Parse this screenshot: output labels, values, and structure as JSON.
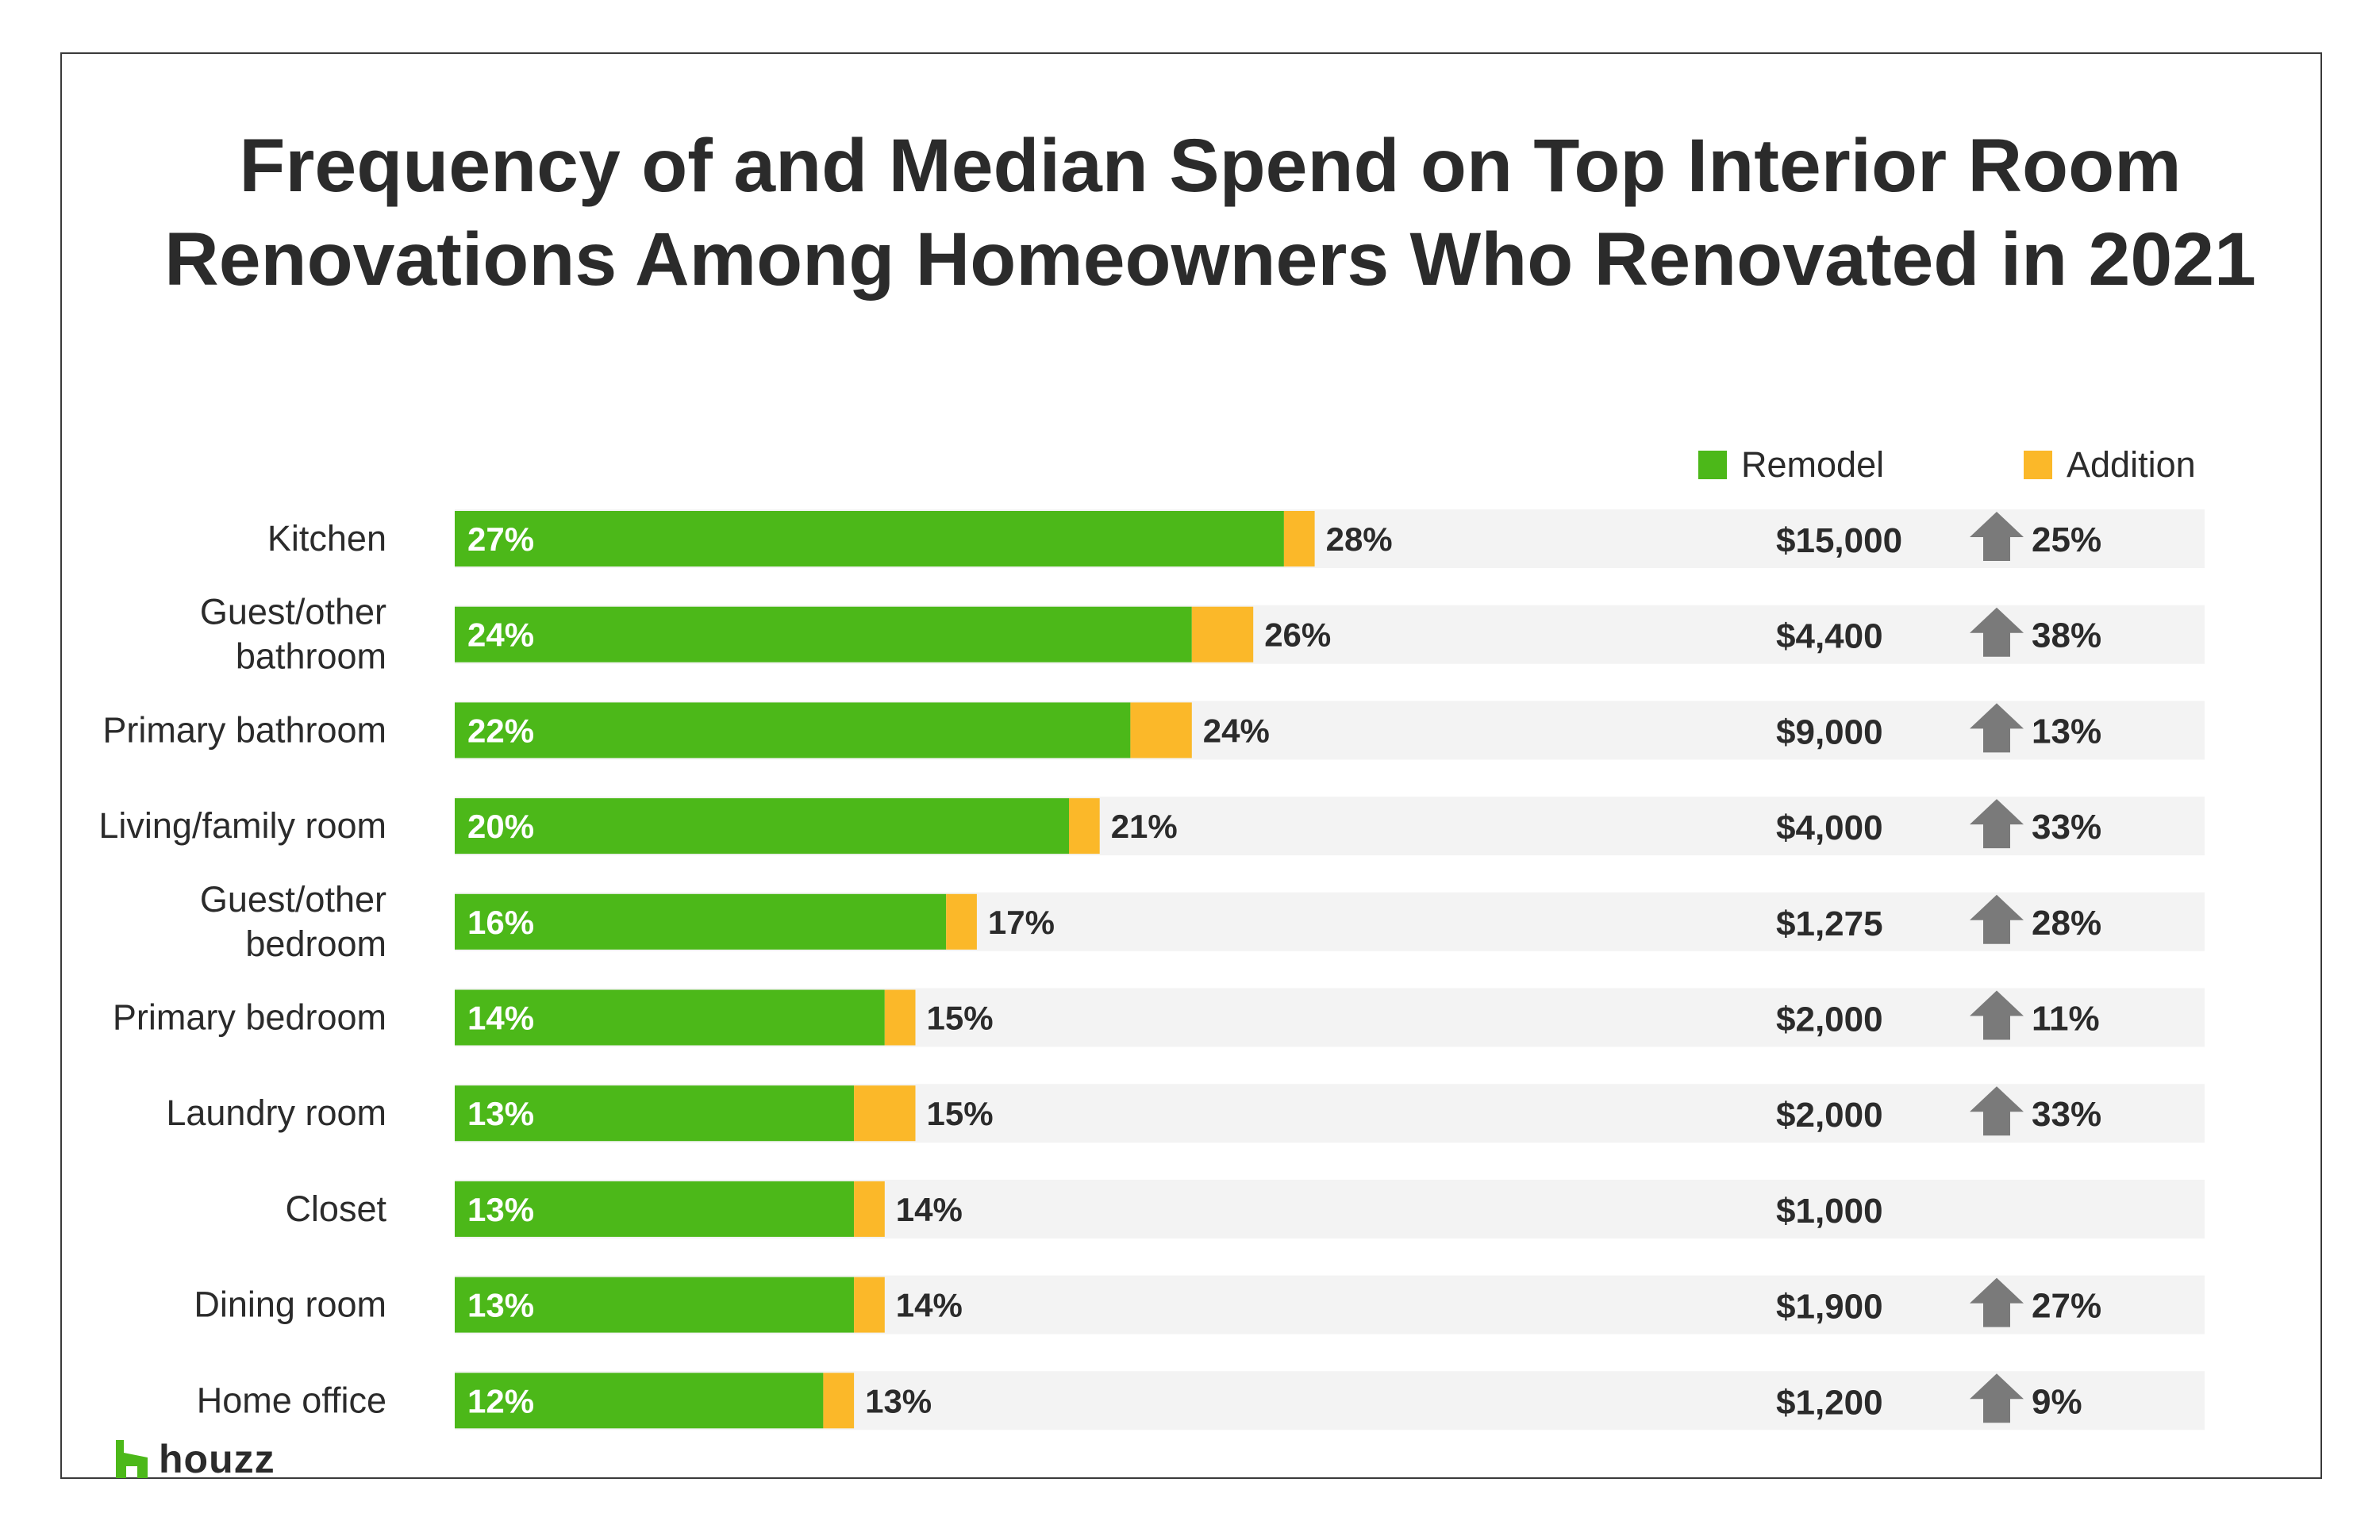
{
  "chart_data": {
    "type": "bar",
    "stacked": true,
    "orientation": "horizontal",
    "title": "Frequency of and Median Spend on Top Interior Room Renovations Among Homeowners Who Renovated in 2021",
    "title_lines": [
      "Frequency of and Median Spend on Top Interior Room",
      "Renovations Among Homeowners Who Renovated in 2021"
    ],
    "categories": [
      [
        "Kitchen"
      ],
      [
        "Guest/other",
        "bathroom"
      ],
      [
        "Primary bathroom"
      ],
      [
        "Living/family room"
      ],
      [
        "Guest/other",
        "bedroom"
      ],
      [
        "Primary bedroom"
      ],
      [
        "Laundry room"
      ],
      [
        "Closet"
      ],
      [
        "Dining room"
      ],
      [
        "Home office"
      ]
    ],
    "series": [
      {
        "name": "Remodel",
        "color": "#4cb819",
        "values": [
          27,
          24,
          22,
          20,
          16,
          14,
          13,
          13,
          13,
          12
        ]
      },
      {
        "name": "Addition",
        "color": "#fbb829",
        "values": [
          1,
          2,
          2,
          1,
          1,
          1,
          2,
          1,
          1,
          1
        ]
      }
    ],
    "remodel_labels": [
      "27%",
      "24%",
      "22%",
      "20%",
      "16%",
      "14%",
      "13%",
      "13%",
      "13%",
      "12%"
    ],
    "total_labels": [
      "28%",
      "26%",
      "24%",
      "21%",
      "17%",
      "15%",
      "15%",
      "14%",
      "14%",
      "13%"
    ],
    "median_spend": [
      "$15,000",
      "$4,400",
      "$9,000",
      "$4,000",
      "$1,275",
      "$2,000",
      "$2,000",
      "$1,000",
      "$1,900",
      "$1,200"
    ],
    "change": [
      {
        "icon": "up-arrow-icon",
        "label": "25%"
      },
      {
        "icon": "up-arrow-icon",
        "label": "38%"
      },
      {
        "icon": "up-arrow-icon",
        "label": "13%"
      },
      {
        "icon": "up-arrow-icon",
        "label": "33%"
      },
      {
        "icon": "up-arrow-icon",
        "label": "28%"
      },
      {
        "icon": "up-arrow-icon",
        "label": "11%"
      },
      {
        "icon": "up-arrow-icon",
        "label": "33%"
      },
      null,
      {
        "icon": "up-arrow-icon",
        "label": "27%"
      },
      {
        "icon": "up-arrow-icon",
        "label": "9%"
      }
    ],
    "xlim": [
      0,
      100
    ],
    "grid": false,
    "legend_position": "top-right",
    "row_background_color": "#f3f3f3",
    "arrow_color": "#7a7a7a"
  },
  "legend": {
    "remodel_label": "Remodel",
    "addition_label": "Addition"
  },
  "brand": {
    "name": "houzz",
    "color": "#4cb819"
  }
}
